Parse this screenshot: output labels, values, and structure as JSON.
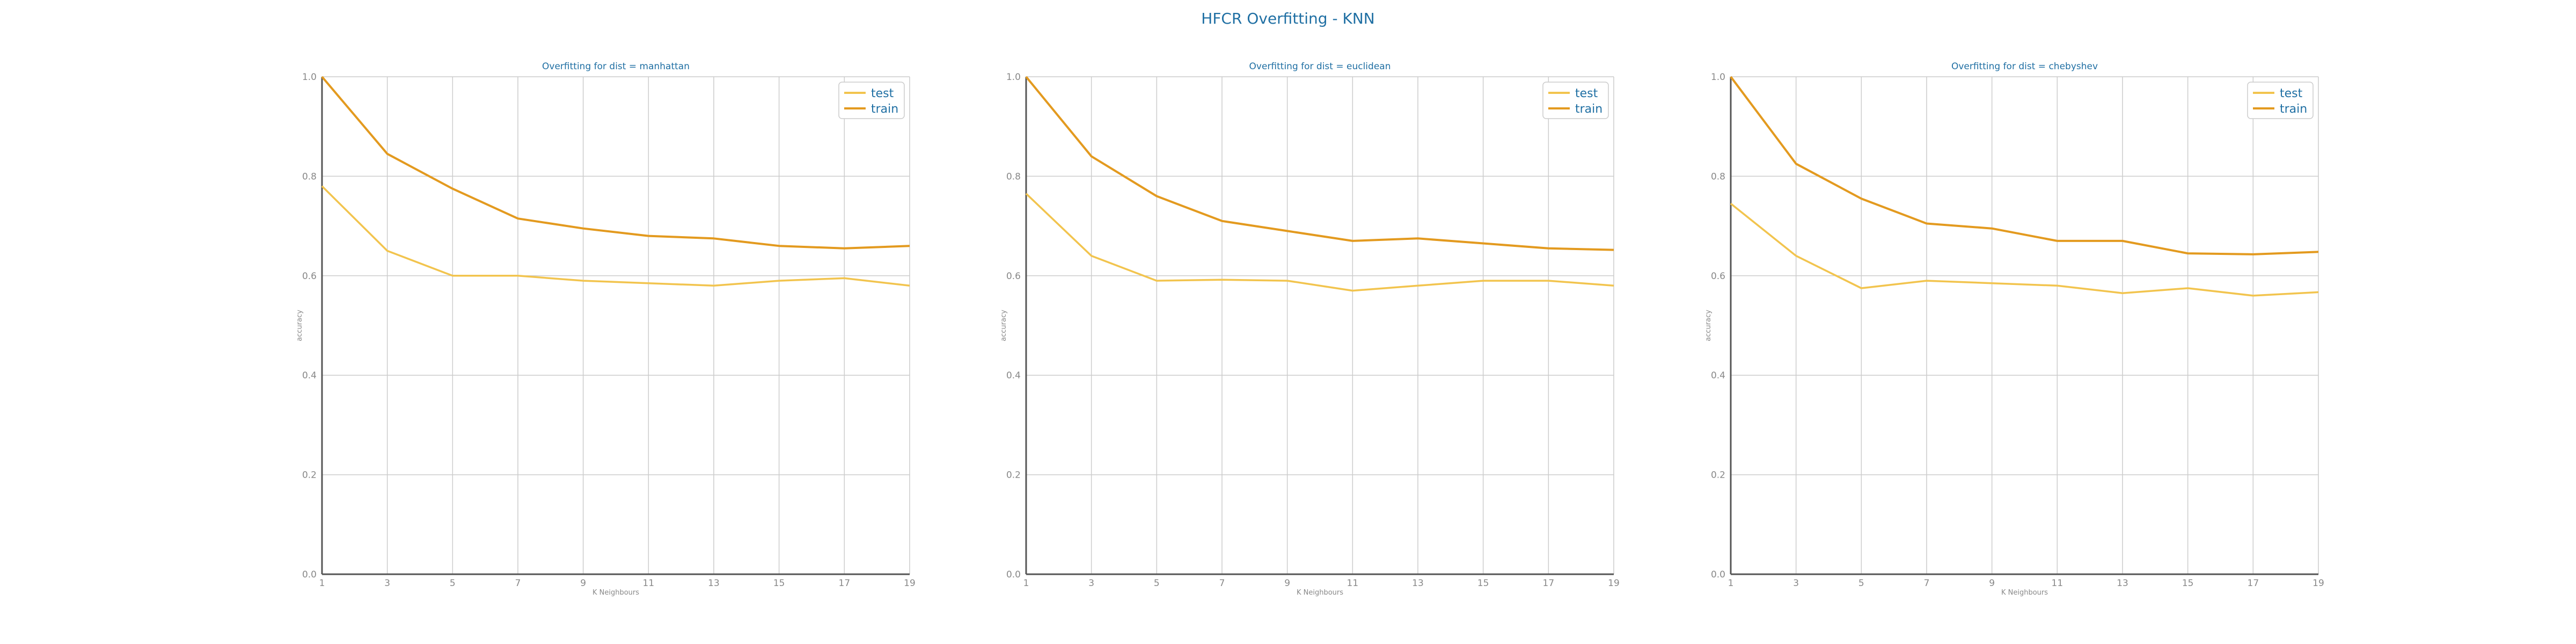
{
  "suptitle": "HFCR Overfitting - KNN",
  "colors": {
    "test": "#f2c44e",
    "train": "#e39a1f",
    "title": "#1f6fa3",
    "grid": "#cccccc"
  },
  "chart_data": [
    {
      "type": "line",
      "title": "Overfitting for dist = manhattan",
      "xlabel": "K Neighbours",
      "ylabel": "accuracy",
      "x": [
        1,
        3,
        5,
        7,
        9,
        11,
        13,
        15,
        17,
        19
      ],
      "xticks": [
        "1",
        "3",
        "5",
        "7",
        "9",
        "11",
        "13",
        "15",
        "17",
        "19"
      ],
      "ylim": [
        0,
        1
      ],
      "yticks": [
        "0.0",
        "0.2",
        "0.4",
        "0.6",
        "0.8",
        "1.0"
      ],
      "grid": true,
      "legend": "top-right",
      "series": [
        {
          "name": "test",
          "values": [
            0.78,
            0.65,
            0.6,
            0.6,
            0.59,
            0.585,
            0.58,
            0.59,
            0.595,
            0.58
          ]
        },
        {
          "name": "train",
          "values": [
            1.0,
            0.845,
            0.775,
            0.715,
            0.695,
            0.68,
            0.675,
            0.66,
            0.655,
            0.66
          ]
        }
      ]
    },
    {
      "type": "line",
      "title": "Overfitting for dist = euclidean",
      "xlabel": "K Neighbours",
      "ylabel": "accuracy",
      "x": [
        1,
        3,
        5,
        7,
        9,
        11,
        13,
        15,
        17,
        19
      ],
      "xticks": [
        "1",
        "3",
        "5",
        "7",
        "9",
        "11",
        "13",
        "15",
        "17",
        "19"
      ],
      "ylim": [
        0,
        1
      ],
      "yticks": [
        "0.0",
        "0.2",
        "0.4",
        "0.6",
        "0.8",
        "1.0"
      ],
      "grid": true,
      "legend": "top-right",
      "series": [
        {
          "name": "test",
          "values": [
            0.765,
            0.64,
            0.59,
            0.592,
            0.59,
            0.57,
            0.58,
            0.59,
            0.59,
            0.58
          ]
        },
        {
          "name": "train",
          "values": [
            1.0,
            0.84,
            0.76,
            0.71,
            0.69,
            0.67,
            0.675,
            0.665,
            0.655,
            0.652
          ]
        }
      ]
    },
    {
      "type": "line",
      "title": "Overfitting for dist = chebyshev",
      "xlabel": "K Neighbours",
      "ylabel": "accuracy",
      "x": [
        1,
        3,
        5,
        7,
        9,
        11,
        13,
        15,
        17,
        19
      ],
      "xticks": [
        "1",
        "3",
        "5",
        "7",
        "9",
        "11",
        "13",
        "15",
        "17",
        "19"
      ],
      "ylim": [
        0,
        1
      ],
      "yticks": [
        "0.0",
        "0.2",
        "0.4",
        "0.6",
        "0.8",
        "1.0"
      ],
      "grid": true,
      "legend": "top-right",
      "series": [
        {
          "name": "test",
          "values": [
            0.745,
            0.64,
            0.575,
            0.59,
            0.585,
            0.58,
            0.565,
            0.575,
            0.56,
            0.567
          ]
        },
        {
          "name": "train",
          "values": [
            1.0,
            0.825,
            0.755,
            0.705,
            0.695,
            0.67,
            0.67,
            0.645,
            0.643,
            0.648
          ]
        }
      ]
    }
  ]
}
